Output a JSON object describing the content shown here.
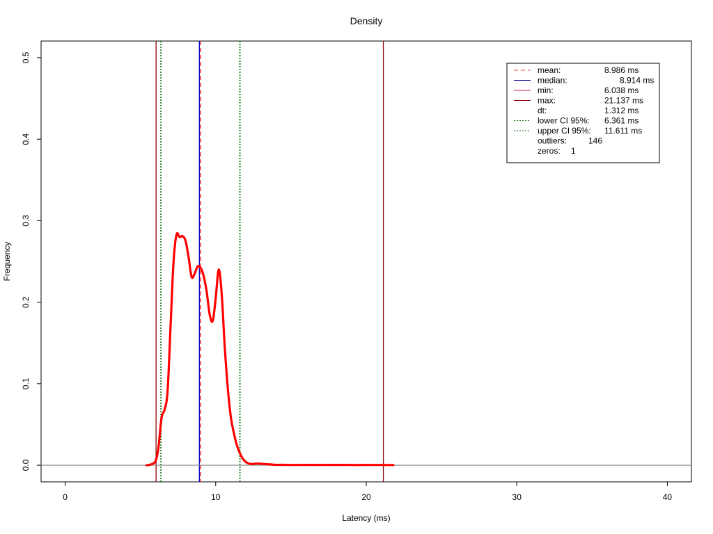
{
  "chart_data": {
    "type": "line",
    "title": "Density",
    "xlabel": "Latency (ms)",
    "ylabel": "Frequency",
    "xlim": [
      -1.6,
      41.6
    ],
    "ylim": [
      -0.0204,
      0.5204
    ],
    "x_ticks": [
      0,
      10,
      20,
      30,
      40
    ],
    "y_ticks": [
      0.0,
      0.1,
      0.2,
      0.3,
      0.4,
      0.5
    ],
    "x_tick_labels": [
      "0",
      "10",
      "20",
      "30",
      "40"
    ],
    "y_tick_labels": [
      "0.0",
      "0.1",
      "0.2",
      "0.3",
      "0.4",
      "0.5"
    ],
    "grid": false,
    "legend_position": "top-right",
    "density": {
      "color": "#ff0000",
      "x": [
        5.4,
        5.7,
        6.0,
        6.2,
        6.4,
        6.6,
        6.8,
        7.0,
        7.2,
        7.4,
        7.6,
        7.8,
        8.0,
        8.2,
        8.4,
        8.6,
        8.8,
        9.0,
        9.2,
        9.4,
        9.6,
        9.8,
        10.0,
        10.2,
        10.4,
        10.6,
        10.8,
        11.0,
        11.2,
        11.4,
        11.6,
        11.8,
        12.0,
        12.2,
        12.4,
        12.8,
        13.2,
        13.6,
        14.0,
        14.5,
        15.0,
        16.0,
        17.0,
        18.0,
        19.0,
        20.0,
        21.0,
        21.8
      ],
      "y": [
        0.0,
        0.001,
        0.005,
        0.022,
        0.058,
        0.068,
        0.09,
        0.17,
        0.25,
        0.283,
        0.28,
        0.281,
        0.275,
        0.255,
        0.231,
        0.235,
        0.244,
        0.242,
        0.232,
        0.213,
        0.185,
        0.177,
        0.205,
        0.24,
        0.21,
        0.145,
        0.095,
        0.06,
        0.04,
        0.025,
        0.015,
        0.008,
        0.004,
        0.002,
        0.0015,
        0.002,
        0.0015,
        0.001,
        0.0005,
        0.0005,
        0.0003,
        0.0004,
        0.0003,
        0.0004,
        0.0003,
        0.0003,
        0.0003,
        0.0002
      ]
    },
    "vertical_lines": [
      {
        "name": "min",
        "x": 6.038,
        "color": "#8b0000",
        "style": "solid"
      },
      {
        "name": "lower-ci",
        "x": 6.361,
        "color": "#006400",
        "style": "dotted"
      },
      {
        "name": "median",
        "x": 8.914,
        "color": "#0000cd",
        "style": "solid"
      },
      {
        "name": "mean",
        "x": 8.986,
        "color": "#ff4040",
        "style": "dashed"
      },
      {
        "name": "upper-ci",
        "x": 11.611,
        "color": "#006400",
        "style": "dotted"
      },
      {
        "name": "max",
        "x": 21.137,
        "color": "#8b0000",
        "style": "solid"
      }
    ],
    "baseline": {
      "y": 0,
      "color": "#888888"
    },
    "legend": [
      {
        "label": "mean:",
        "value": "8.986 ms",
        "color": "#ff4040",
        "style": "dashed"
      },
      {
        "label": "median:",
        "value": "8.914 ms",
        "color": "#00008b",
        "style": "solid"
      },
      {
        "label": "min:",
        "value": "6.038 ms",
        "color": "#c2185b",
        "style": "solid"
      },
      {
        "label": "max:",
        "value": "21.137 ms",
        "color": "#8b0000",
        "style": "solid"
      },
      {
        "label": "dt:",
        "value": "1.312 ms",
        "color": "",
        "style": "none"
      },
      {
        "label": "lower CI 95%:",
        "value": "6.361 ms",
        "color": "#006400",
        "style": "dotted"
      },
      {
        "label": "upper CI 95%:",
        "value": "11.611 ms",
        "color": "#006400",
        "style": "dotted"
      },
      {
        "label": "outliers:",
        "value": "146",
        "color": "",
        "style": "none"
      },
      {
        "label": "zeros:",
        "value": "1",
        "color": "",
        "style": "none"
      }
    ]
  }
}
